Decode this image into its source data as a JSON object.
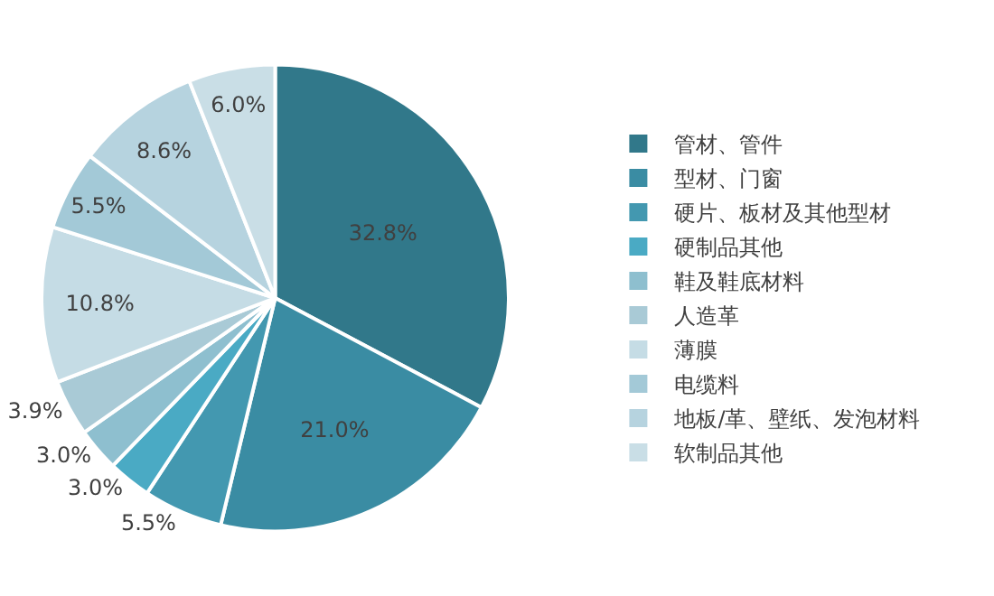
{
  "chart_data": {
    "type": "pie",
    "categories": [
      "管材、管件",
      "型材、门窗",
      "硬片、板材及其他型材",
      "硬制品其他",
      "鞋及鞋底材料",
      "人造革",
      "薄膜",
      "电缆料",
      "地板/革、壁纸、发泡材料",
      "软制品其他"
    ],
    "values": [
      32.8,
      21.0,
      5.5,
      3.0,
      3.0,
      3.9,
      10.8,
      5.5,
      8.6,
      6.0
    ],
    "colors": [
      "#31788a",
      "#3a8ca3",
      "#4398b0",
      "#4aaac4",
      "#8ebfcf",
      "#a9cad6",
      "#c5dce5",
      "#a3c9d7",
      "#b6d3df",
      "#c9dee6"
    ],
    "value_labels": [
      "32.8%",
      "21.0%",
      "5.5%",
      "3.0%",
      "3.0%",
      "3.9%",
      "10.8%",
      "5.5%",
      "8.6%",
      "6.0%"
    ],
    "legend": "right"
  }
}
